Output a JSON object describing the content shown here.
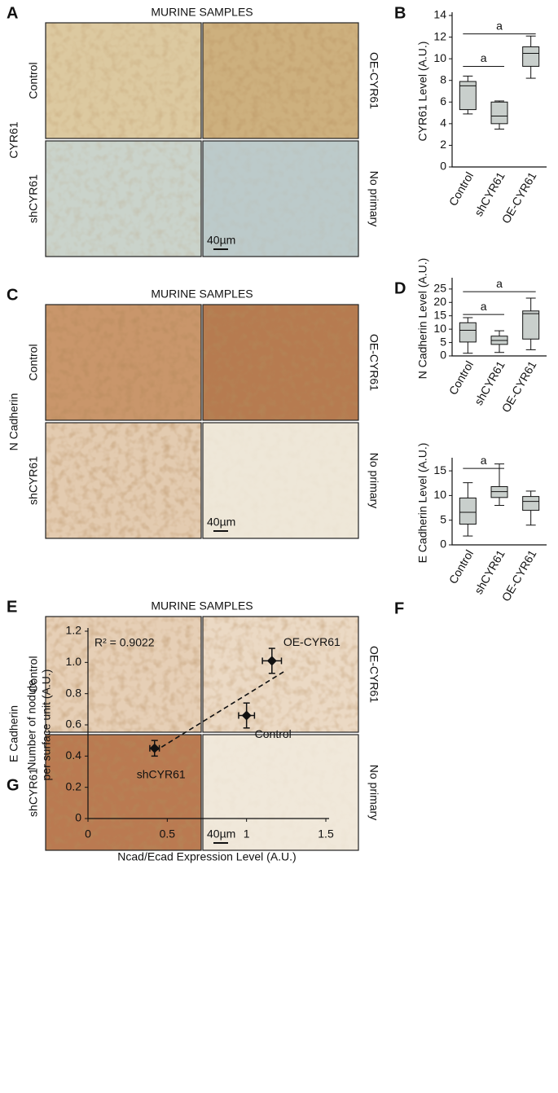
{
  "panels": [
    {
      "letter": "A",
      "title": "MURINE SAMPLES",
      "stain": "CYR61",
      "left_labels": [
        "Control",
        "shCYR61"
      ],
      "right_labels": [
        "OE-CYR61",
        "No primary"
      ],
      "scale_bar": "40µm"
    },
    {
      "letter": "C",
      "title": "MURINE SAMPLES",
      "stain": "N Cadherin",
      "left_labels": [
        "Control",
        "shCYR61"
      ],
      "right_labels": [
        "OE-CYR61",
        "No primary"
      ],
      "scale_bar": "40µm"
    },
    {
      "letter": "E",
      "title": "MURINE SAMPLES",
      "stain": "E Cadherin",
      "left_labels": [
        "Control",
        "shCYR61"
      ],
      "right_labels": [
        "OE-CYR61",
        "No primary"
      ],
      "scale_bar": "40µm"
    }
  ],
  "chart_data": [
    {
      "type": "box",
      "panel": "B",
      "ylabel": "CYR61 Level (A.U.)",
      "categories": [
        "Control",
        "shCYR61",
        "OE-CYR61"
      ],
      "min": [
        4.9,
        3.5,
        8.2
      ],
      "q1": [
        5.3,
        4.0,
        9.3
      ],
      "median": [
        7.5,
        4.7,
        10.5
      ],
      "q3": [
        7.9,
        6.0,
        11.1
      ],
      "max": [
        8.4,
        6.1,
        12.1
      ],
      "color": "#c9cfcc",
      "ylim": [
        0,
        14
      ],
      "yticks": [
        0,
        2,
        4,
        6,
        8,
        10,
        12,
        14
      ],
      "annotations": [
        {
          "text": "a",
          "between": [
            "Control",
            "shCYR61"
          ],
          "y": 9.3
        },
        {
          "text": "a",
          "between": [
            "Control",
            "OE-CYR61"
          ],
          "y": 12.3
        }
      ]
    },
    {
      "type": "box",
      "panel": "D",
      "ylabel": "N Cadherin Level (A.U.)",
      "categories": [
        "Control",
        "shCYR61",
        "OE-CYR61"
      ],
      "min": [
        1.0,
        1.3,
        2.3
      ],
      "q1": [
        5.2,
        4.3,
        6.3
      ],
      "median": [
        9.6,
        5.8,
        15.8
      ],
      "q3": [
        12.4,
        7.4,
        16.8
      ],
      "max": [
        14.3,
        9.4,
        21.6
      ],
      "color": "#c9cfcc",
      "ylim": [
        0,
        28
      ],
      "yticks": [
        0,
        5,
        10,
        15,
        20,
        25
      ],
      "annotations": [
        {
          "text": "a",
          "between": [
            "Control",
            "shCYR61"
          ],
          "y": 15.5
        },
        {
          "text": "a",
          "between": [
            "Control",
            "OE-CYR61"
          ],
          "y": 24
        }
      ]
    },
    {
      "type": "box",
      "panel": "F",
      "ylabel": "E Cadherin Level (A.U.)",
      "categories": [
        "Control",
        "shCYR61",
        "OE-CYR61"
      ],
      "min": [
        1.8,
        8.0,
        4.0
      ],
      "q1": [
        4.2,
        9.6,
        7.0
      ],
      "median": [
        6.6,
        10.8,
        8.8
      ],
      "q3": [
        9.5,
        11.8,
        9.8
      ],
      "max": [
        12.6,
        16.4,
        10.9
      ],
      "color": "#c9cfcc",
      "ylim": [
        0,
        17
      ],
      "yticks": [
        0,
        5,
        10,
        15
      ],
      "annotations": [
        {
          "text": "a",
          "between": [
            "Control",
            "shCYR61"
          ],
          "y": 15.5
        }
      ]
    },
    {
      "type": "scatter",
      "panel": "G",
      "xlabel": "Ncad/Ecad Expression Level (A.U.)",
      "ylabel": [
        "Number of nodule",
        "per surface unit (A.U.)"
      ],
      "annotation": "R² = 0.9022",
      "points": [
        {
          "label": "shCYR61",
          "x": 0.42,
          "y": 0.45,
          "xerr": 0.03,
          "yerr": 0.05
        },
        {
          "label": "Control",
          "x": 1.0,
          "y": 0.66,
          "xerr": 0.05,
          "yerr": 0.08
        },
        {
          "label": "OE-CYR61",
          "x": 1.16,
          "y": 1.01,
          "xerr": 0.06,
          "yerr": 0.08
        }
      ],
      "trendline": {
        "x": [
          0.42,
          1.25
        ],
        "y": [
          0.43,
          0.95
        ]
      },
      "color": "#111111",
      "xlim": [
        0,
        1.5
      ],
      "xticks": [
        0,
        0.5,
        1,
        1.5
      ],
      "ylim": [
        0,
        1.2
      ],
      "yticks": [
        0,
        0.2,
        0.4,
        0.6,
        0.8,
        {
          "value": 1,
          "label": "1.0"
        },
        1.2
      ]
    }
  ]
}
